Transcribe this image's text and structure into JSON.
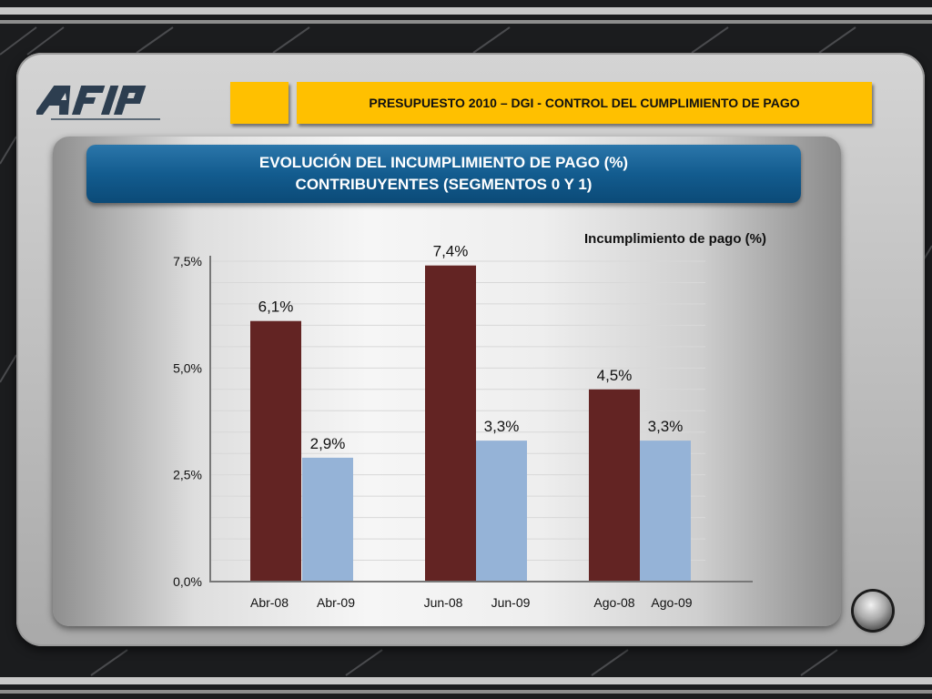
{
  "brand": {
    "logo": "AFIP"
  },
  "header": {
    "title": "PRESUPUESTO 2010 – DGI - CONTROL DEL CUMPLIMIENTO DE PAGO"
  },
  "banner": {
    "line1": "EVOLUCIÓN DEL INCUMPLIMIENTO DE PAGO (%)",
    "line2": "CONTRIBUYENTES (SEGMENTOS 0 Y 1)"
  },
  "colors": {
    "series_2008": "#632423",
    "series_2009": "#95b3d7",
    "accent": "#ffc000",
    "banner": "#17608f"
  },
  "nav": {
    "icon": "round-nav-button-icon"
  },
  "chart_data": {
    "type": "bar",
    "title": "Incumplimiento de pago (%)",
    "xlabel": "",
    "ylabel": "",
    "ylim": [
      0,
      7.5
    ],
    "yticks": [
      "0,0%",
      "2,5%",
      "5,0%",
      "7,5%"
    ],
    "grid": true,
    "legend": "none",
    "categories": [
      "Abr-08",
      "Abr-09",
      "Jun-08",
      "Jun-09",
      "Ago-08",
      "Ago-09"
    ],
    "values": [
      6.1,
      2.9,
      7.4,
      3.3,
      4.5,
      3.3
    ],
    "labels": [
      "6,1%",
      "2,9%",
      "7,4%",
      "3,3%",
      "4,5%",
      "3,3%"
    ],
    "groups": [
      {
        "name": "Abr",
        "bars": [
          0,
          1
        ]
      },
      {
        "name": "Jun",
        "bars": [
          2,
          3
        ]
      },
      {
        "name": "Ago",
        "bars": [
          4,
          5
        ]
      }
    ]
  }
}
